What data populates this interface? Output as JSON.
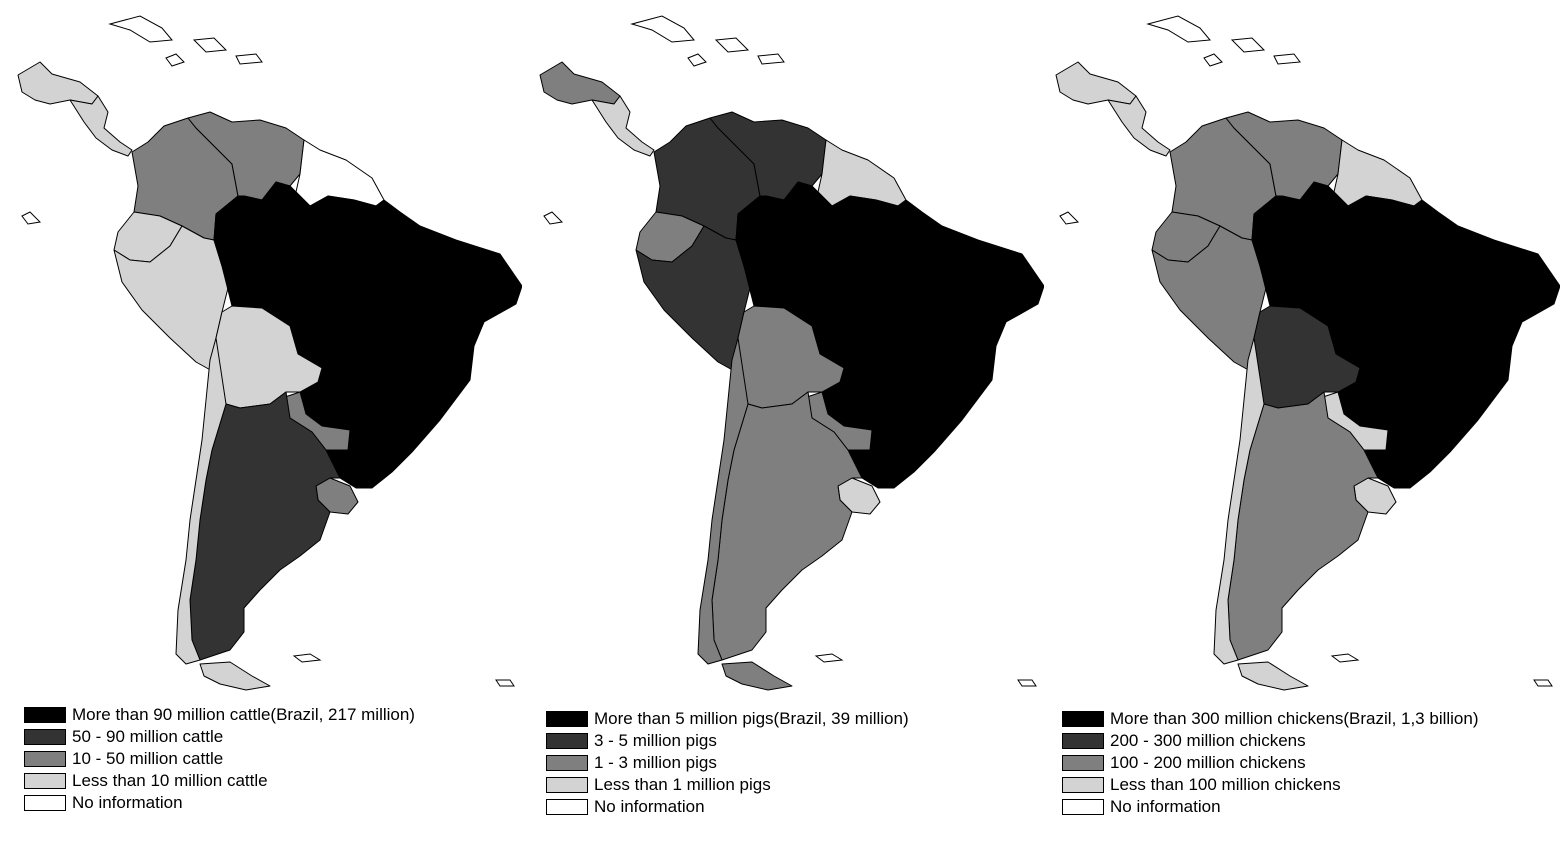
{
  "colors": {
    "very_high": "#000000",
    "high": "#333333",
    "medium": "#7f7f7f",
    "low": "#d3d3d3",
    "none": "#ffffff"
  },
  "maps": [
    {
      "id": "cattle",
      "fills": {
        "central_america_north": "low",
        "central_america_south": "low",
        "colombia": "medium",
        "venezuela": "medium",
        "guianas": "none",
        "ecuador": "low",
        "peru": "low",
        "brazil": "very_high",
        "bolivia": "low",
        "paraguay": "medium",
        "chile": "low",
        "argentina": "high",
        "uruguay": "medium",
        "tierra_del_fuego": "low"
      },
      "legend": [
        {
          "level": "very_high",
          "label": "More than 90 million cattle(Brazil, 217 million)"
        },
        {
          "level": "high",
          "label": "50 - 90 million cattle"
        },
        {
          "level": "medium",
          "label": "10 - 50 million cattle"
        },
        {
          "level": "low",
          "label": "Less than 10 million cattle"
        },
        {
          "level": "none",
          "label": "No information"
        }
      ]
    },
    {
      "id": "pigs",
      "fills": {
        "central_america_north": "medium",
        "central_america_south": "low",
        "colombia": "high",
        "venezuela": "high",
        "guianas": "low",
        "ecuador": "medium",
        "peru": "high",
        "brazil": "very_high",
        "bolivia": "medium",
        "paraguay": "medium",
        "chile": "medium",
        "argentina": "medium",
        "uruguay": "low",
        "tierra_del_fuego": "medium"
      },
      "legend": [
        {
          "level": "very_high",
          "label": "More than 5 million pigs(Brazil, 39 million)"
        },
        {
          "level": "high",
          "label": "3 - 5 million pigs"
        },
        {
          "level": "medium",
          "label": "1 - 3 million pigs"
        },
        {
          "level": "low",
          "label": "Less than 1 million pigs"
        },
        {
          "level": "none",
          "label": "No information"
        }
      ]
    },
    {
      "id": "chickens",
      "fills": {
        "central_america_north": "low",
        "central_america_south": "low",
        "colombia": "medium",
        "venezuela": "medium",
        "guianas": "low",
        "ecuador": "medium",
        "peru": "medium",
        "brazil": "very_high",
        "bolivia": "high",
        "paraguay": "low",
        "chile": "low",
        "argentina": "medium",
        "uruguay": "low",
        "tierra_del_fuego": "low"
      },
      "legend": [
        {
          "level": "very_high",
          "label": "More than 300 million chickens(Brazil, 1,3 billion)"
        },
        {
          "level": "high",
          "label": "200 - 300 million chickens"
        },
        {
          "level": "medium",
          "label": "100 - 200 million chickens"
        },
        {
          "level": "low",
          "label": "Less than 100 million chickens"
        },
        {
          "level": "none",
          "label": "No information"
        }
      ]
    }
  ]
}
